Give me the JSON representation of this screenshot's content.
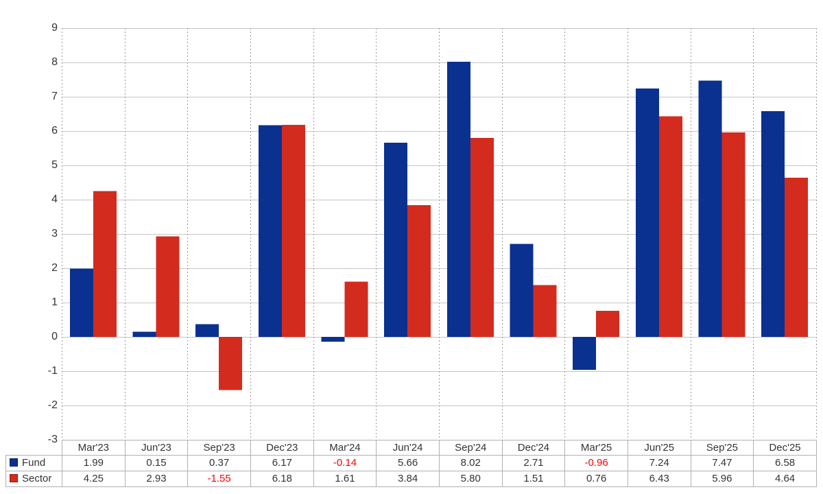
{
  "chart_data": {
    "type": "bar",
    "title": "",
    "xlabel": "",
    "ylabel": "",
    "categories": [
      "Mar'23",
      "Jun'23",
      "Sep'23",
      "Dec'23",
      "Mar'24",
      "Jun'24",
      "Sep'24",
      "Dec'24",
      "Mar'25",
      "Jun'25",
      "Sep'25",
      "Dec'25"
    ],
    "series": [
      {
        "name": "Fund",
        "color": "#0A318F",
        "marker_border": "#00205E",
        "values": [
          1.99,
          0.15,
          0.37,
          6.17,
          -0.14,
          5.66,
          8.02,
          2.71,
          -0.96,
          7.24,
          7.47,
          6.58
        ]
      },
      {
        "name": "Sector",
        "color": "#D32B1E",
        "marker_border": "#8F1B12",
        "values": [
          4.25,
          2.93,
          -1.55,
          6.18,
          1.61,
          3.84,
          5.8,
          1.51,
          0.76,
          6.43,
          5.96,
          4.64
        ]
      }
    ],
    "y_ticks": [
      9,
      8,
      7,
      6,
      5,
      4,
      3,
      2,
      1,
      0,
      -1,
      -2,
      -3
    ],
    "ylim": [
      -3,
      9
    ],
    "grid": true,
    "category_dividers": "dotted",
    "legend_position": "table-left",
    "value_decimals": 2,
    "negative_value_color": "#FF0000"
  },
  "colors": {
    "background": "#FFFFFF",
    "fund": "#0A318F",
    "sector": "#D32B1E",
    "gridline": "#C6C6C6",
    "category_divider": "#999999",
    "table_border": "#B0B0B0",
    "text": "#333333",
    "negative_text": "#FF0000"
  }
}
